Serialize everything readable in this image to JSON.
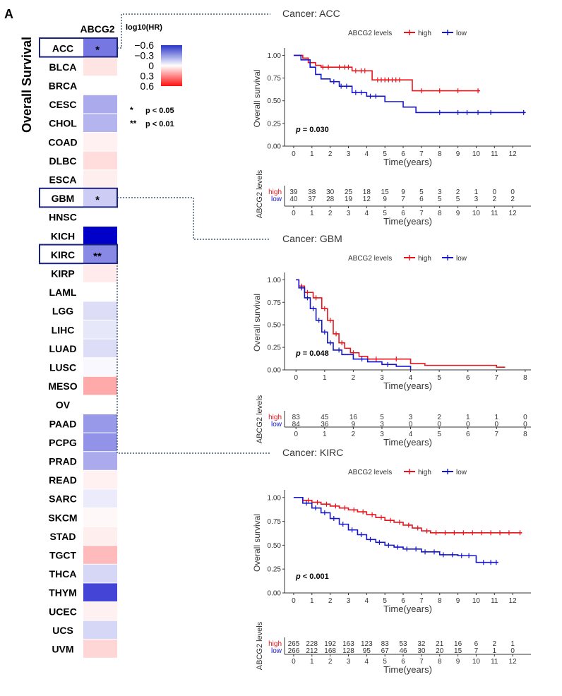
{
  "panel_label": "A",
  "heatmap": {
    "side_title": "Overall Survival",
    "column_header": "ABCG2",
    "legend_title": "log10(HR)",
    "legend_ticks": [
      "−0.6",
      "−0.3",
      "0",
      "0.3",
      "0.6"
    ],
    "legend_tick_values": [
      -0.6,
      -0.3,
      0,
      0.3,
      0.6
    ],
    "sig_legend": [
      {
        "symbol": "*",
        "text": "p < 0.05"
      },
      {
        "symbol": "**",
        "text": "p < 0.01"
      }
    ],
    "colors": {
      "negative": "#0000c8",
      "neutral": "#ffffff",
      "positive": "#ff0000",
      "highlight_box": "#1a237e"
    },
    "rows": [
      {
        "cancer": "ACC",
        "value": -0.4,
        "sig": "*",
        "highlight": true
      },
      {
        "cancer": "BLCA",
        "value": 0.08,
        "sig": "",
        "highlight": false
      },
      {
        "cancer": "BRCA",
        "value": 0.0,
        "sig": "",
        "highlight": false
      },
      {
        "cancer": "CESC",
        "value": -0.25,
        "sig": "",
        "highlight": false
      },
      {
        "cancer": "CHOL",
        "value": -0.22,
        "sig": "",
        "highlight": false
      },
      {
        "cancer": "COAD",
        "value": 0.04,
        "sig": "",
        "highlight": false
      },
      {
        "cancer": "DLBC",
        "value": 0.1,
        "sig": "",
        "highlight": false
      },
      {
        "cancer": "ESCA",
        "value": 0.05,
        "sig": "",
        "highlight": false
      },
      {
        "cancer": "GBM",
        "value": -0.15,
        "sig": "*",
        "highlight": true
      },
      {
        "cancer": "HNSC",
        "value": 0.0,
        "sig": "",
        "highlight": false
      },
      {
        "cancer": "KICH",
        "value": -0.75,
        "sig": "",
        "highlight": false
      },
      {
        "cancer": "KIRC",
        "value": -0.35,
        "sig": "**",
        "highlight": true
      },
      {
        "cancer": "KIRP",
        "value": 0.06,
        "sig": "",
        "highlight": false
      },
      {
        "cancer": "LAML",
        "value": 0.0,
        "sig": "",
        "highlight": false
      },
      {
        "cancer": "LGG",
        "value": -0.1,
        "sig": "",
        "highlight": false
      },
      {
        "cancer": "LIHC",
        "value": -0.07,
        "sig": "",
        "highlight": false
      },
      {
        "cancer": "LUAD",
        "value": -0.1,
        "sig": "",
        "highlight": false
      },
      {
        "cancer": "LUSC",
        "value": -0.02,
        "sig": "",
        "highlight": false
      },
      {
        "cancer": "MESO",
        "value": 0.25,
        "sig": "",
        "highlight": false
      },
      {
        "cancer": "OV",
        "value": 0.0,
        "sig": "",
        "highlight": false
      },
      {
        "cancer": "PAAD",
        "value": -0.3,
        "sig": "",
        "highlight": false
      },
      {
        "cancer": "PCPG",
        "value": -0.32,
        "sig": "",
        "highlight": false
      },
      {
        "cancer": "PRAD",
        "value": -0.25,
        "sig": "",
        "highlight": false
      },
      {
        "cancer": "READ",
        "value": 0.04,
        "sig": "",
        "highlight": false
      },
      {
        "cancer": "SARC",
        "value": -0.06,
        "sig": "",
        "highlight": false
      },
      {
        "cancer": "SKCM",
        "value": 0.02,
        "sig": "",
        "highlight": false
      },
      {
        "cancer": "STAD",
        "value": 0.05,
        "sig": "",
        "highlight": false
      },
      {
        "cancer": "TGCT",
        "value": 0.2,
        "sig": "",
        "highlight": false
      },
      {
        "cancer": "THCA",
        "value": -0.12,
        "sig": "",
        "highlight": false
      },
      {
        "cancer": "THYM",
        "value": -0.55,
        "sig": "",
        "highlight": false
      },
      {
        "cancer": "UCEC",
        "value": 0.04,
        "sig": "",
        "highlight": false
      },
      {
        "cancer": "UCS",
        "value": -0.12,
        "sig": "",
        "highlight": false
      },
      {
        "cancer": "UVM",
        "value": 0.12,
        "sig": "",
        "highlight": false
      }
    ]
  },
  "chart_data": [
    {
      "type": "line",
      "title": "Cancer: ACC",
      "legend_title": "ABCG2 levels",
      "legend_position": "top",
      "xlabel": "Time(years)",
      "ylabel": "Overall survival",
      "xlim": [
        -0.5,
        13
      ],
      "ylim": [
        0,
        1.05
      ],
      "xticks": [
        "0",
        "1",
        "2",
        "3",
        "4",
        "5",
        "6",
        "7",
        "8",
        "9",
        "10",
        "11",
        "12"
      ],
      "yticks": [
        "0.00",
        "0.25",
        "0.50",
        "0.75",
        "1.00"
      ],
      "pvalue_label": "p",
      "pvalue_text": " = 0.030",
      "series": [
        {
          "name": "high",
          "color": "#e8141c",
          "x": [
            0,
            0.5,
            0.8,
            1.2,
            1.5,
            2.2,
            3.2,
            4.3,
            6.5,
            10.2
          ],
          "y": [
            1.0,
            0.97,
            0.92,
            0.89,
            0.87,
            0.87,
            0.83,
            0.73,
            0.61,
            0.61
          ],
          "censor_x": [
            1.6,
            1.9,
            2.5,
            2.8,
            3.0,
            3.4,
            3.7,
            3.9,
            4.6,
            4.8,
            5.0,
            5.2,
            5.4,
            5.6,
            5.8,
            7.0,
            8.0,
            9.0,
            10.1
          ]
        },
        {
          "name": "low",
          "color": "#1515cc",
          "x": [
            0,
            0.4,
            0.9,
            1.2,
            1.5,
            2.0,
            2.5,
            3.2,
            4.0,
            5.0,
            6.0,
            6.7,
            12.7
          ],
          "y": [
            1.0,
            0.95,
            0.87,
            0.79,
            0.74,
            0.71,
            0.66,
            0.59,
            0.55,
            0.49,
            0.43,
            0.37,
            0.37
          ],
          "censor_x": [
            2.2,
            2.6,
            2.9,
            3.4,
            3.7,
            4.2,
            4.5,
            8.0,
            9.0,
            9.5,
            10.1,
            10.8,
            12.6
          ]
        }
      ],
      "risk_table": {
        "ylabel": "ABCG2 levels",
        "rows": [
          {
            "name": "high",
            "counts": [
              "39",
              "38",
              "30",
              "25",
              "18",
              "15",
              "9",
              "5",
              "3",
              "2",
              "1",
              "0",
              "0"
            ]
          },
          {
            "name": "low",
            "counts": [
              "40",
              "37",
              "28",
              "19",
              "12",
              "9",
              "7",
              "6",
              "5",
              "5",
              "3",
              "2",
              "2"
            ]
          }
        ]
      }
    },
    {
      "type": "line",
      "title": "Cancer: GBM",
      "legend_title": "ABCG2 levels",
      "legend_position": "top",
      "xlabel": "Time(years)",
      "ylabel": "Overall survival",
      "xlim": [
        -0.4,
        8.2
      ],
      "ylim": [
        0,
        1.05
      ],
      "xticks": [
        "0",
        "1",
        "2",
        "3",
        "4",
        "5",
        "6",
        "7",
        "8"
      ],
      "yticks": [
        "0.00",
        "0.25",
        "0.50",
        "0.75",
        "1.00"
      ],
      "pvalue_label": "p",
      "pvalue_text": " = 0.048",
      "series": [
        {
          "name": "high",
          "color": "#e8141c",
          "x": [
            0,
            0.1,
            0.3,
            0.6,
            0.9,
            1.1,
            1.3,
            1.5,
            1.7,
            1.9,
            2.2,
            2.5,
            3.0,
            4.0,
            4.5,
            5.0,
            7.0,
            7.3
          ],
          "y": [
            1.0,
            0.93,
            0.86,
            0.8,
            0.68,
            0.55,
            0.4,
            0.3,
            0.24,
            0.19,
            0.15,
            0.12,
            0.12,
            0.07,
            0.05,
            0.05,
            0.03,
            0.03
          ],
          "censor_x": [
            0.2,
            0.4,
            0.7,
            1.0,
            1.2,
            1.4,
            1.6,
            2.0,
            2.8,
            3.5
          ]
        },
        {
          "name": "low",
          "color": "#1515cc",
          "x": [
            0,
            0.1,
            0.3,
            0.5,
            0.7,
            0.9,
            1.1,
            1.3,
            1.6,
            2.0,
            2.5,
            3.0,
            3.5,
            4.0
          ],
          "y": [
            1.0,
            0.91,
            0.8,
            0.68,
            0.55,
            0.42,
            0.3,
            0.22,
            0.17,
            0.12,
            0.09,
            0.06,
            0.04,
            0.0
          ],
          "censor_x": [
            0.2,
            0.4,
            0.6,
            0.8,
            1.0,
            1.2,
            1.5,
            2.3,
            3.2
          ]
        }
      ],
      "risk_table": {
        "ylabel": "ABCG2 levels",
        "rows": [
          {
            "name": "high",
            "counts": [
              "83",
              "45",
              "16",
              "5",
              "3",
              "2",
              "1",
              "1",
              "0"
            ]
          },
          {
            "name": "low",
            "counts": [
              "84",
              "36",
              "9",
              "3",
              "0",
              "0",
              "0",
              "0",
              "0"
            ]
          }
        ]
      }
    },
    {
      "type": "line",
      "title": "Cancer: KIRC",
      "legend_title": "ABCG2 levels",
      "legend_position": "top",
      "xlabel": "Time(years)",
      "ylabel": "Overall survival",
      "xlim": [
        -0.5,
        13
      ],
      "ylim": [
        0,
        1.05
      ],
      "xticks": [
        "0",
        "1",
        "2",
        "3",
        "4",
        "5",
        "6",
        "7",
        "8",
        "9",
        "10",
        "11",
        "12"
      ],
      "yticks": [
        "0.00",
        "0.25",
        "0.50",
        "0.75",
        "1.00"
      ],
      "pvalue_label": "p",
      "pvalue_text": " < 0.001",
      "series": [
        {
          "name": "high",
          "color": "#e8141c",
          "x": [
            0,
            0.5,
            1.0,
            1.5,
            2.0,
            2.5,
            3.0,
            3.5,
            4.0,
            4.5,
            5.0,
            5.5,
            6.0,
            6.5,
            7.0,
            7.5,
            8.0,
            12.5
          ],
          "y": [
            1.0,
            0.97,
            0.95,
            0.93,
            0.91,
            0.89,
            0.87,
            0.85,
            0.82,
            0.79,
            0.76,
            0.74,
            0.71,
            0.68,
            0.65,
            0.63,
            0.63,
            0.63
          ],
          "censor_x": [
            0.8,
            1.3,
            1.8,
            2.3,
            2.8,
            3.3,
            3.8,
            4.3,
            4.8,
            5.3,
            5.8,
            6.3,
            6.8,
            7.3,
            7.8,
            8.3,
            8.8,
            9.3,
            9.8,
            10.3,
            10.8,
            11.3,
            11.8,
            12.4
          ]
        },
        {
          "name": "low",
          "color": "#1515cc",
          "x": [
            0,
            0.5,
            1.0,
            1.5,
            2.0,
            2.5,
            3.0,
            3.5,
            4.0,
            4.5,
            5.0,
            5.5,
            6.0,
            7.0,
            8.0,
            9.0,
            9.8,
            10.0,
            11.2
          ],
          "y": [
            1.0,
            0.94,
            0.89,
            0.84,
            0.78,
            0.72,
            0.66,
            0.61,
            0.56,
            0.53,
            0.5,
            0.48,
            0.46,
            0.43,
            0.4,
            0.39,
            0.39,
            0.32,
            0.32
          ],
          "censor_x": [
            0.7,
            1.2,
            1.7,
            2.2,
            2.7,
            3.2,
            3.7,
            4.2,
            4.7,
            5.2,
            5.7,
            6.2,
            6.7,
            7.2,
            7.7,
            8.2,
            8.7,
            9.2,
            9.6,
            10.4,
            10.8,
            11.1
          ]
        }
      ],
      "risk_table": {
        "ylabel": "ABCG2 levels",
        "rows": [
          {
            "name": "high",
            "counts": [
              "265",
              "228",
              "192",
              "163",
              "123",
              "83",
              "53",
              "32",
              "21",
              "16",
              "6",
              "2",
              "1"
            ]
          },
          {
            "name": "low",
            "counts": [
              "266",
              "212",
              "168",
              "128",
              "95",
              "67",
              "46",
              "30",
              "20",
              "15",
              "7",
              "1",
              "0"
            ]
          }
        ]
      }
    }
  ]
}
